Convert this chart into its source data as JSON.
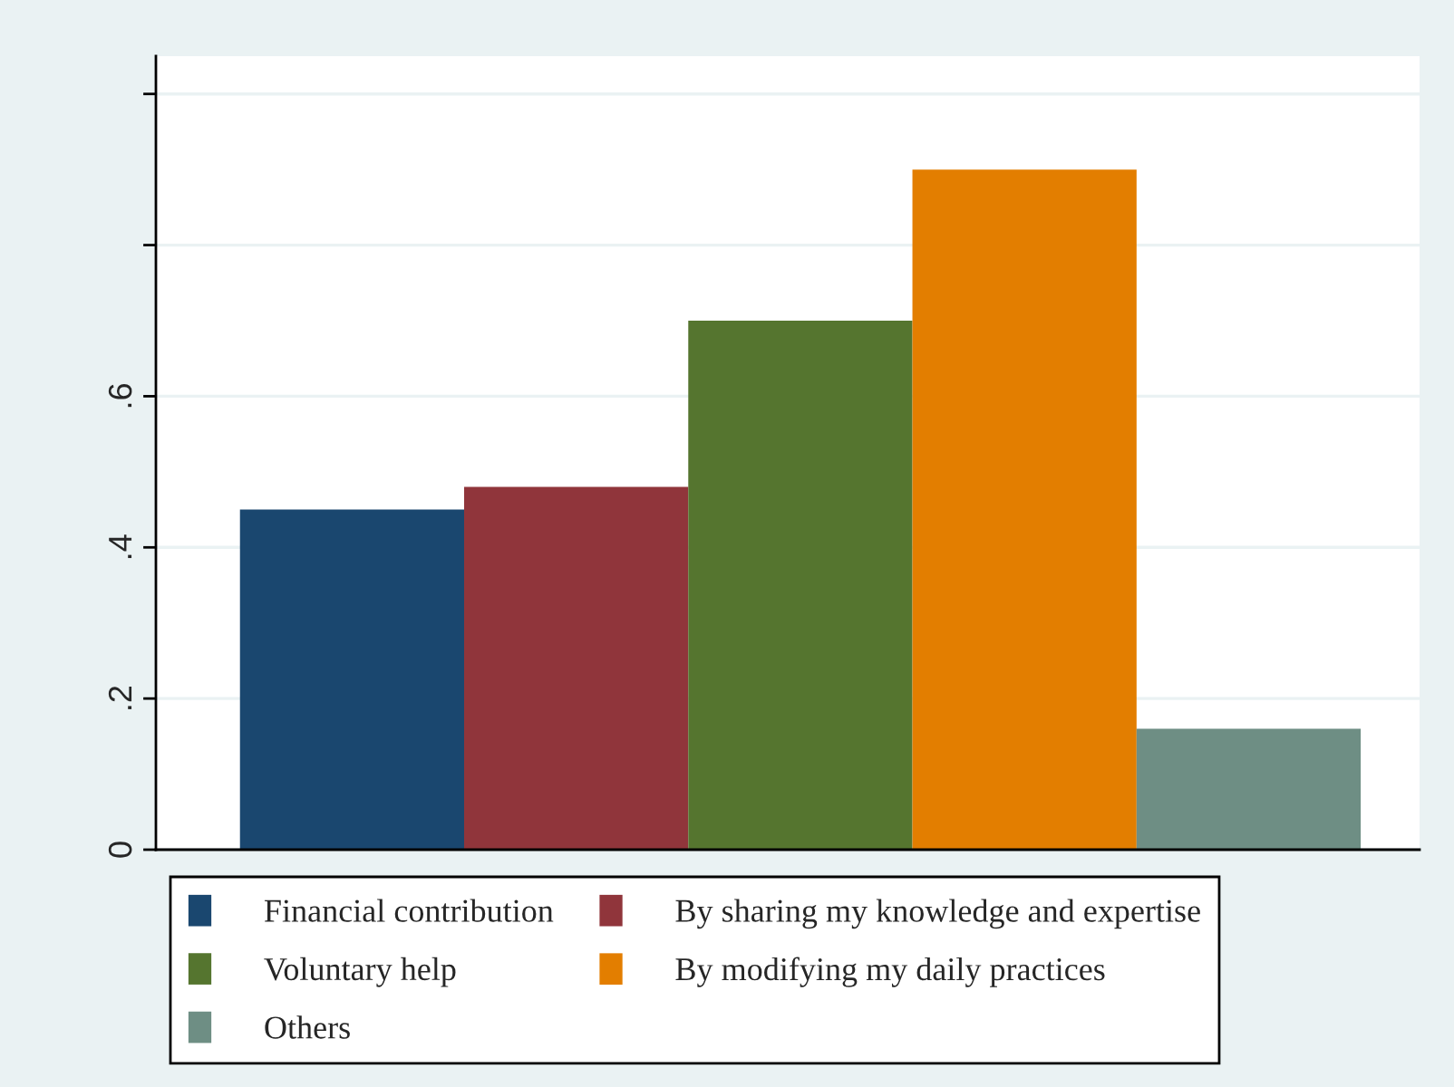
{
  "chart_data": {
    "type": "bar",
    "categories": [
      null
    ],
    "series": [
      {
        "name": "Financial contribution",
        "color": "#1a476f",
        "values": [
          0.45
        ]
      },
      {
        "name": "By sharing my knowledge and expertise",
        "color": "#90353b",
        "values": [
          0.48
        ]
      },
      {
        "name": "Voluntary help",
        "color": "#55752f",
        "values": [
          0.7
        ]
      },
      {
        "name": "By modifying my daily practices",
        "color": "#e37e00",
        "values": [
          0.9
        ]
      },
      {
        "name": "Others",
        "color": "#6e8e84",
        "values": [
          0.16
        ]
      }
    ],
    "ylim": [
      0,
      1.05
    ],
    "yticks": [
      0,
      {
        "value": 0.2,
        "label": ".2"
      },
      {
        "value": 0.4,
        "label": ".4"
      },
      {
        "value": 0.6,
        "label": ".6"
      },
      {
        "value": 0.8,
        "label": null
      },
      {
        "value": 1,
        "label": null
      }
    ],
    "grid": "y",
    "legend": "bottom",
    "tick_labels": "y"
  }
}
